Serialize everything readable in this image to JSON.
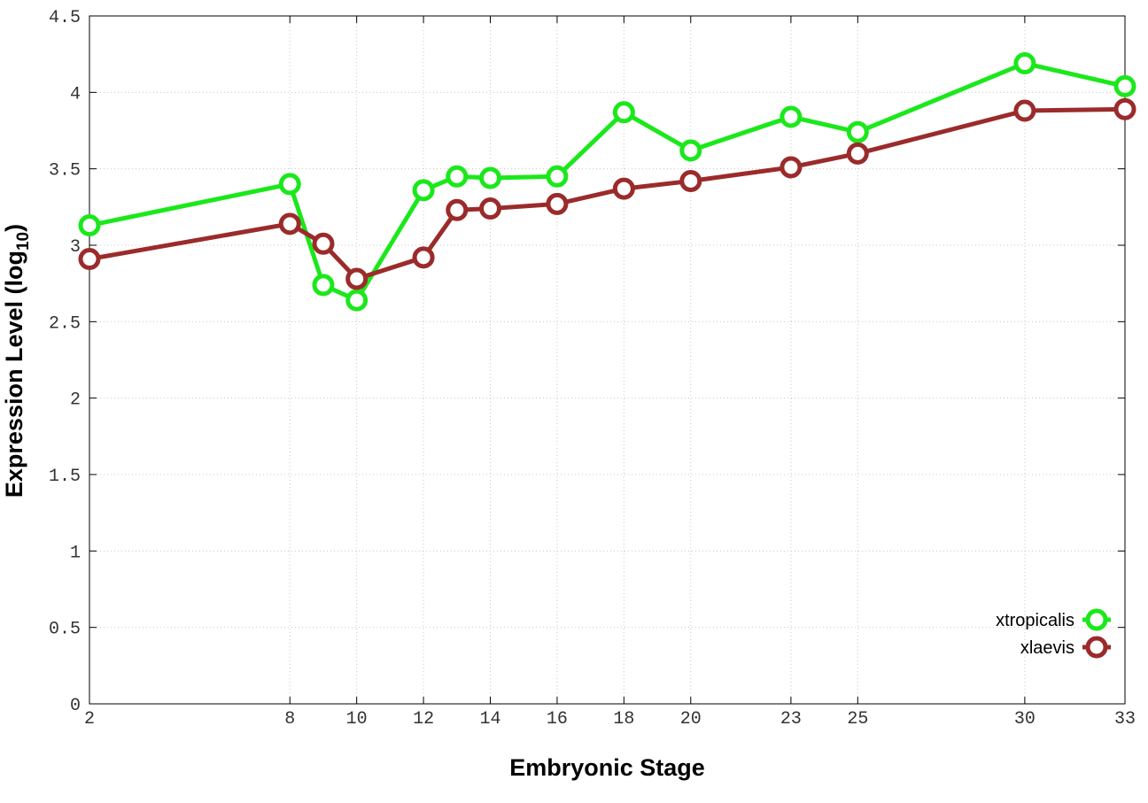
{
  "chart_data": {
    "type": "line",
    "xlabel": "Embryonic Stage",
    "ylabel_main": "Expression Level (log",
    "ylabel_sub": "10",
    "ylabel_close": ")",
    "x_ticks": [
      2,
      8,
      10,
      12,
      14,
      16,
      18,
      20,
      23,
      25,
      30,
      33
    ],
    "y_ticks": [
      "0",
      "0.5",
      "1",
      "1.5",
      "2",
      "2.5",
      "3",
      "3.5",
      "4",
      "4.5"
    ],
    "xlim": [
      2,
      33
    ],
    "ylim": [
      0,
      4.5
    ],
    "grid": true,
    "legend_position": "bottom-right",
    "series": [
      {
        "name": "xtropicalis",
        "color": "#1be81b",
        "x": [
          2,
          8,
          9,
          10,
          12,
          13,
          14,
          16,
          18,
          20,
          23,
          25,
          30,
          33
        ],
        "y": [
          3.13,
          3.4,
          2.74,
          2.64,
          3.36,
          3.45,
          3.44,
          3.45,
          3.87,
          3.62,
          3.84,
          3.74,
          4.19,
          4.04
        ]
      },
      {
        "name": "xlaevis",
        "color": "#9b2b2b",
        "x": [
          2,
          8,
          9,
          10,
          12,
          13,
          14,
          16,
          18,
          20,
          23,
          25,
          30,
          33
        ],
        "y": [
          2.91,
          3.14,
          3.01,
          2.78,
          2.92,
          3.23,
          3.24,
          3.27,
          3.37,
          3.42,
          3.51,
          3.6,
          3.88,
          3.89
        ]
      }
    ]
  }
}
